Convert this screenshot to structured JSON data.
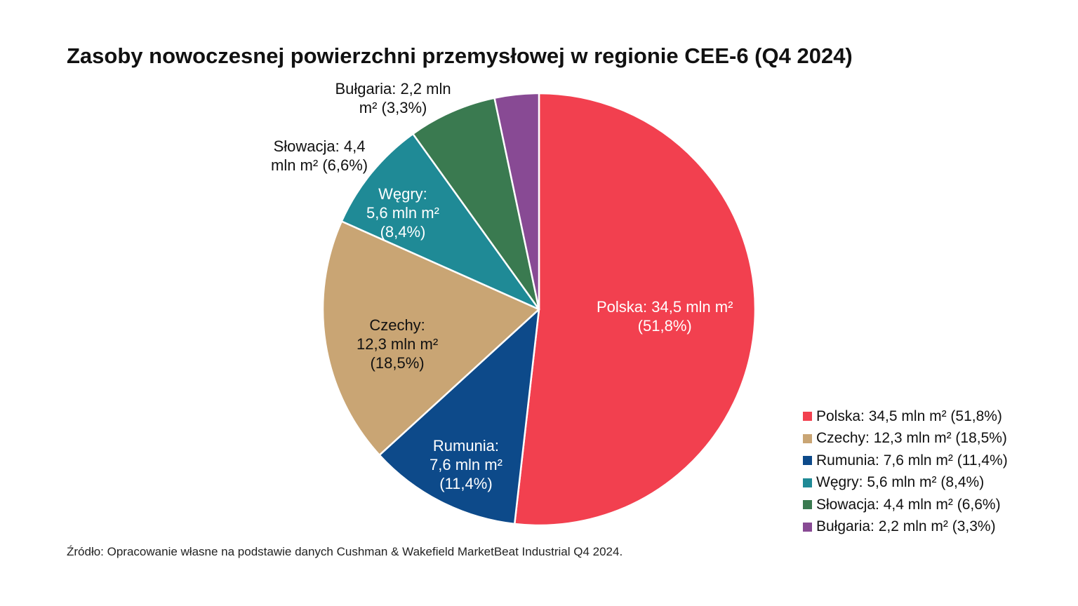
{
  "chart_data": {
    "type": "pie",
    "title": "Zasoby nowoczesnej powierzchni przemysłowej w regionie CEE-6 (Q4 2024)",
    "unit": "mln m²",
    "slices": [
      {
        "name": "Polska",
        "value": 34.5,
        "percent": 51.8,
        "color": "#f2404f",
        "label_lines": [
          "Polska: 34,5 mln m²",
          "(51,8%)"
        ],
        "legend": "Polska: 34,5 mln m² (51,8%)",
        "label_color": "#ffffff"
      },
      {
        "name": "Rumunia",
        "value": 7.6,
        "percent": 11.4,
        "color": "#0d4a8a",
        "label_lines": [
          "Rumunia:",
          "7,6 mln m²",
          "(11,4%)"
        ],
        "legend": "Rumunia: 7,6 mln m² (11,4%)",
        "label_color": "#ffffff"
      },
      {
        "name": "Czechy",
        "value": 12.3,
        "percent": 18.5,
        "color": "#c9a574",
        "label_lines": [
          "Czechy:",
          "12,3 mln m²",
          "(18,5%)"
        ],
        "legend": "Czechy: 12,3 mln m² (18,5%)",
        "label_color": "#111111"
      },
      {
        "name": "Węgry",
        "value": 5.6,
        "percent": 8.4,
        "color": "#1f8a96",
        "label_lines": [
          "Węgry:",
          "5,6 mln m²",
          "(8,4%)"
        ],
        "legend": "Węgry: 5,6 mln m² (8,4%)",
        "label_color": "#ffffff"
      },
      {
        "name": "Słowacja",
        "value": 4.4,
        "percent": 6.6,
        "color": "#3a7a50",
        "label_lines": [
          "Słowacja: 4,4",
          "mln m² (6,6%)"
        ],
        "legend": "Słowacja: 4,4 mln m² (6,6%)",
        "label_color": "#111111"
      },
      {
        "name": "Bułgaria",
        "value": 2.2,
        "percent": 3.3,
        "color": "#884a94",
        "label_lines": [
          "Bułgaria: 2,2 mln",
          "m² (3,3%)"
        ],
        "legend": "Bułgaria: 2,2 mln m² (3,3%)",
        "label_color": "#111111"
      }
    ],
    "legend_order": [
      "Polska",
      "Czechy",
      "Rumunia",
      "Węgry",
      "Słowacja",
      "Bułgaria"
    ],
    "legend_placement": "bottom-right",
    "source": "Źródło: Opracowanie własne na podstawie danych Cushman & Wakefield MarketBeat Industrial Q4 2024."
  }
}
